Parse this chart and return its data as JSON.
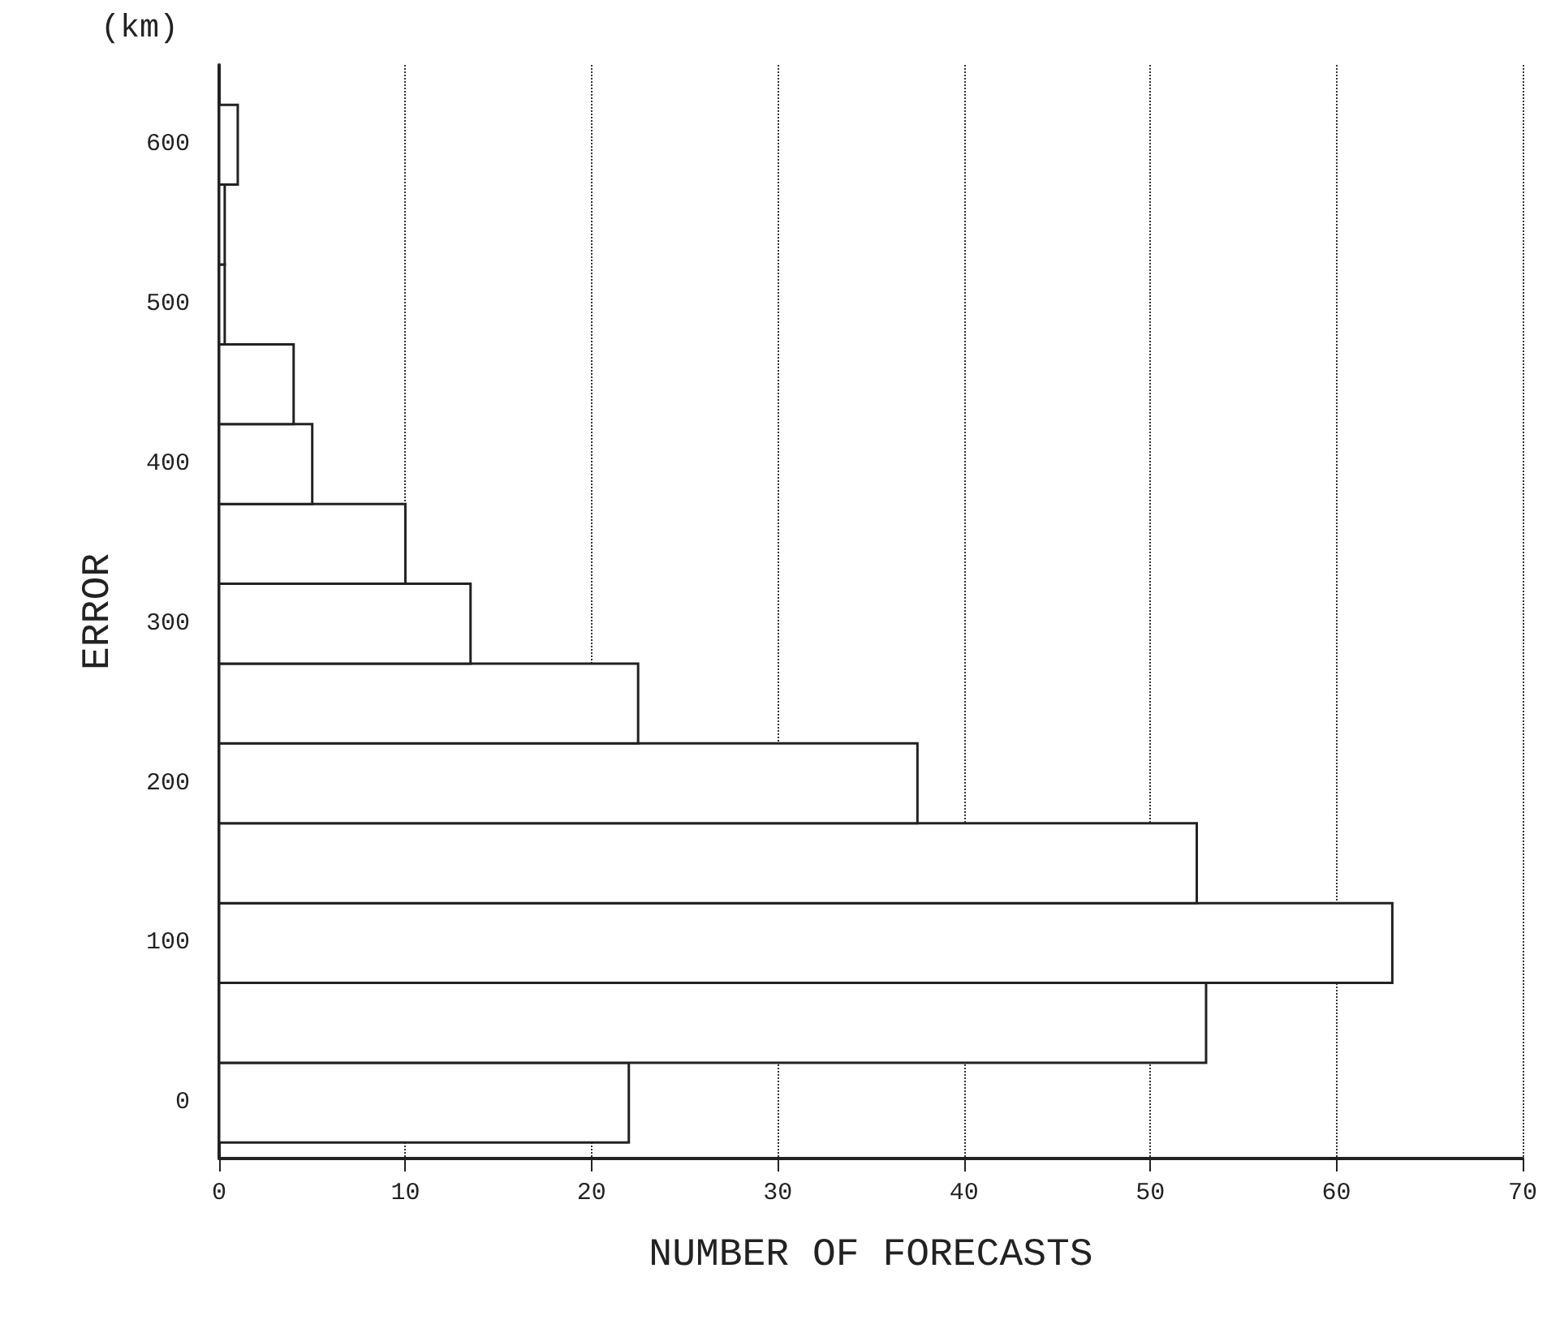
{
  "chart_data": {
    "type": "histogram",
    "orientation": "horizontal",
    "xlabel": "NUMBER OF FORECASTS",
    "ylabel": "ERROR",
    "annotations": [
      "(km)"
    ],
    "bins": [
      -25,
      25,
      75,
      125,
      175,
      225,
      275,
      325,
      375,
      425,
      475,
      525,
      575,
      625
    ],
    "values": [
      22,
      53,
      63,
      52.5,
      37.5,
      22.5,
      13.5,
      10,
      5,
      4,
      0.3,
      0.3,
      1
    ],
    "color": "#ffffff",
    "xlim": [
      0,
      70
    ],
    "xticks": [
      0,
      10,
      20,
      30,
      40,
      50,
      60,
      70
    ],
    "ylim": [
      -35,
      650
    ],
    "yticks": [
      0,
      100,
      200,
      300,
      400,
      500,
      600
    ],
    "grid": "x",
    "line_style": "dotted"
  }
}
